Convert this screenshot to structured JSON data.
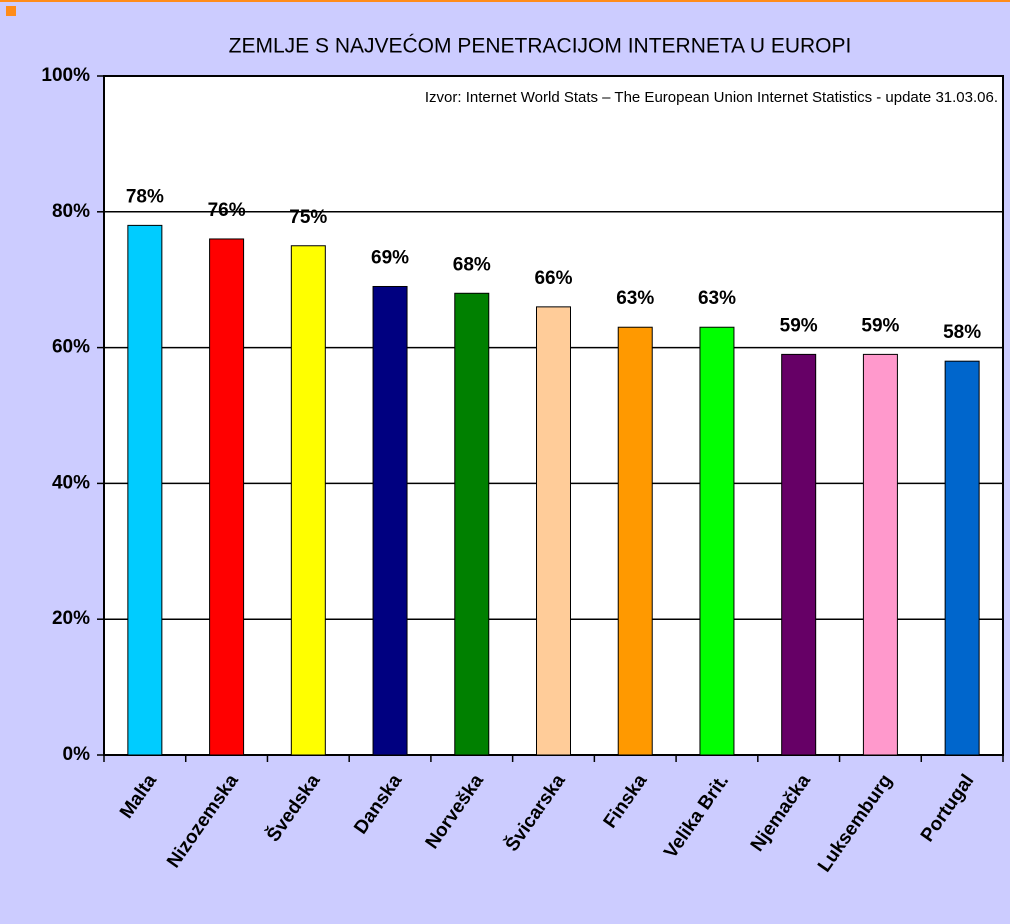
{
  "chart_data": {
    "type": "bar",
    "title": "ZEMLJE S NAJVEĆOM PENETRACIJOM INTERNETA U EUROPI",
    "annotation": "Izvor: Internet World Stats – The European Union Internet Statistics - update 31.03.06.",
    "categories": [
      "Malta",
      "Nizozemska",
      "Švedska",
      "Danska",
      "Norveška",
      "Švicarska",
      "Finska",
      "Velika Brit.",
      "Njemačka",
      "Luksemburg",
      "Portugal"
    ],
    "values": [
      78,
      76,
      75,
      69,
      68,
      66,
      63,
      63,
      59,
      59,
      58
    ],
    "value_labels": [
      "78%",
      "76%",
      "75%",
      "69%",
      "68%",
      "66%",
      "63%",
      "63%",
      "59%",
      "59%",
      "58%"
    ],
    "colors": [
      "#00ccff",
      "#ff0000",
      "#ffff00",
      "#000080",
      "#008000",
      "#ffcc99",
      "#ff9900",
      "#00ff00",
      "#660066",
      "#ff99cc",
      "#0066cc"
    ],
    "ylim": [
      0,
      100
    ],
    "yticks": [
      {
        "value": 0,
        "label": "0%"
      },
      {
        "value": 20,
        "label": "20%"
      },
      {
        "value": 40,
        "label": "40%"
      },
      {
        "value": 60,
        "label": "60%"
      },
      {
        "value": 80,
        "label": "80%"
      },
      {
        "value": 100,
        "label": "100%"
      }
    ],
    "grid": true
  }
}
